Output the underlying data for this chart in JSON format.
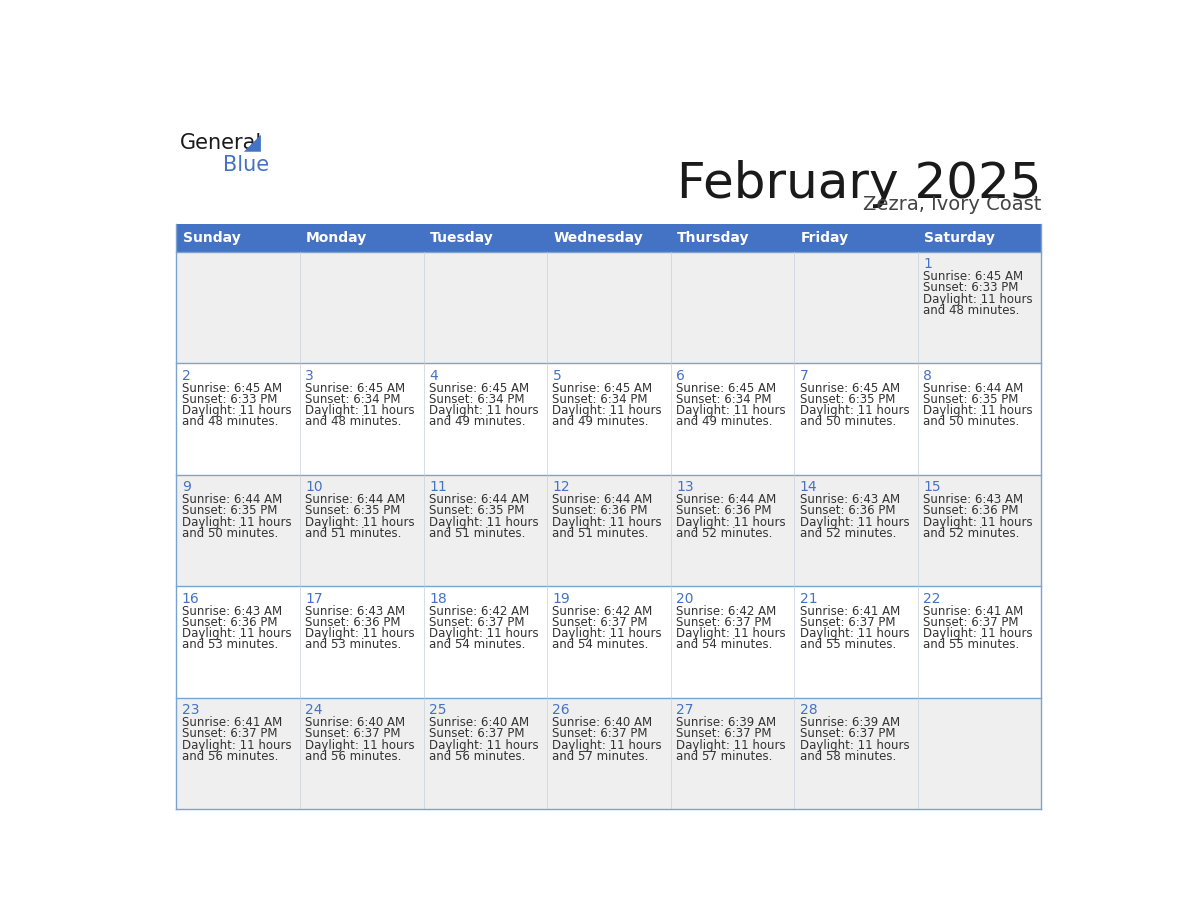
{
  "title": "February 2025",
  "subtitle": "Zezra, Ivory Coast",
  "header_bg": "#4472C4",
  "header_text": "#FFFFFF",
  "weekdays": [
    "Sunday",
    "Monday",
    "Tuesday",
    "Wednesday",
    "Thursday",
    "Friday",
    "Saturday"
  ],
  "row_bg_even": "#EFEFEF",
  "row_bg_odd": "#FFFFFF",
  "day_number_color": "#4472C4",
  "info_text_color": "#333333",
  "calendar": [
    [
      null,
      null,
      null,
      null,
      null,
      null,
      1
    ],
    [
      2,
      3,
      4,
      5,
      6,
      7,
      8
    ],
    [
      9,
      10,
      11,
      12,
      13,
      14,
      15
    ],
    [
      16,
      17,
      18,
      19,
      20,
      21,
      22
    ],
    [
      23,
      24,
      25,
      26,
      27,
      28,
      null
    ]
  ],
  "sunrise": {
    "1": "6:45 AM",
    "2": "6:45 AM",
    "3": "6:45 AM",
    "4": "6:45 AM",
    "5": "6:45 AM",
    "6": "6:45 AM",
    "7": "6:45 AM",
    "8": "6:44 AM",
    "9": "6:44 AM",
    "10": "6:44 AM",
    "11": "6:44 AM",
    "12": "6:44 AM",
    "13": "6:44 AM",
    "14": "6:43 AM",
    "15": "6:43 AM",
    "16": "6:43 AM",
    "17": "6:43 AM",
    "18": "6:42 AM",
    "19": "6:42 AM",
    "20": "6:42 AM",
    "21": "6:41 AM",
    "22": "6:41 AM",
    "23": "6:41 AM",
    "24": "6:40 AM",
    "25": "6:40 AM",
    "26": "6:40 AM",
    "27": "6:39 AM",
    "28": "6:39 AM"
  },
  "sunset": {
    "1": "6:33 PM",
    "2": "6:33 PM",
    "3": "6:34 PM",
    "4": "6:34 PM",
    "5": "6:34 PM",
    "6": "6:34 PM",
    "7": "6:35 PM",
    "8": "6:35 PM",
    "9": "6:35 PM",
    "10": "6:35 PM",
    "11": "6:35 PM",
    "12": "6:36 PM",
    "13": "6:36 PM",
    "14": "6:36 PM",
    "15": "6:36 PM",
    "16": "6:36 PM",
    "17": "6:36 PM",
    "18": "6:37 PM",
    "19": "6:37 PM",
    "20": "6:37 PM",
    "21": "6:37 PM",
    "22": "6:37 PM",
    "23": "6:37 PM",
    "24": "6:37 PM",
    "25": "6:37 PM",
    "26": "6:37 PM",
    "27": "6:37 PM",
    "28": "6:37 PM"
  },
  "daylight_hours": {
    "1": "11",
    "2": "11",
    "3": "11",
    "4": "11",
    "5": "11",
    "6": "11",
    "7": "11",
    "8": "11",
    "9": "11",
    "10": "11",
    "11": "11",
    "12": "11",
    "13": "11",
    "14": "11",
    "15": "11",
    "16": "11",
    "17": "11",
    "18": "11",
    "19": "11",
    "20": "11",
    "21": "11",
    "22": "11",
    "23": "11",
    "24": "11",
    "25": "11",
    "26": "11",
    "27": "11",
    "28": "11"
  },
  "daylight_minutes": {
    "1": "48",
    "2": "48",
    "3": "48",
    "4": "49",
    "5": "49",
    "6": "49",
    "7": "50",
    "8": "50",
    "9": "50",
    "10": "51",
    "11": "51",
    "12": "51",
    "13": "52",
    "14": "52",
    "15": "52",
    "16": "53",
    "17": "53",
    "18": "54",
    "19": "54",
    "20": "54",
    "21": "55",
    "22": "55",
    "23": "56",
    "24": "56",
    "25": "56",
    "26": "57",
    "27": "57",
    "28": "58"
  }
}
